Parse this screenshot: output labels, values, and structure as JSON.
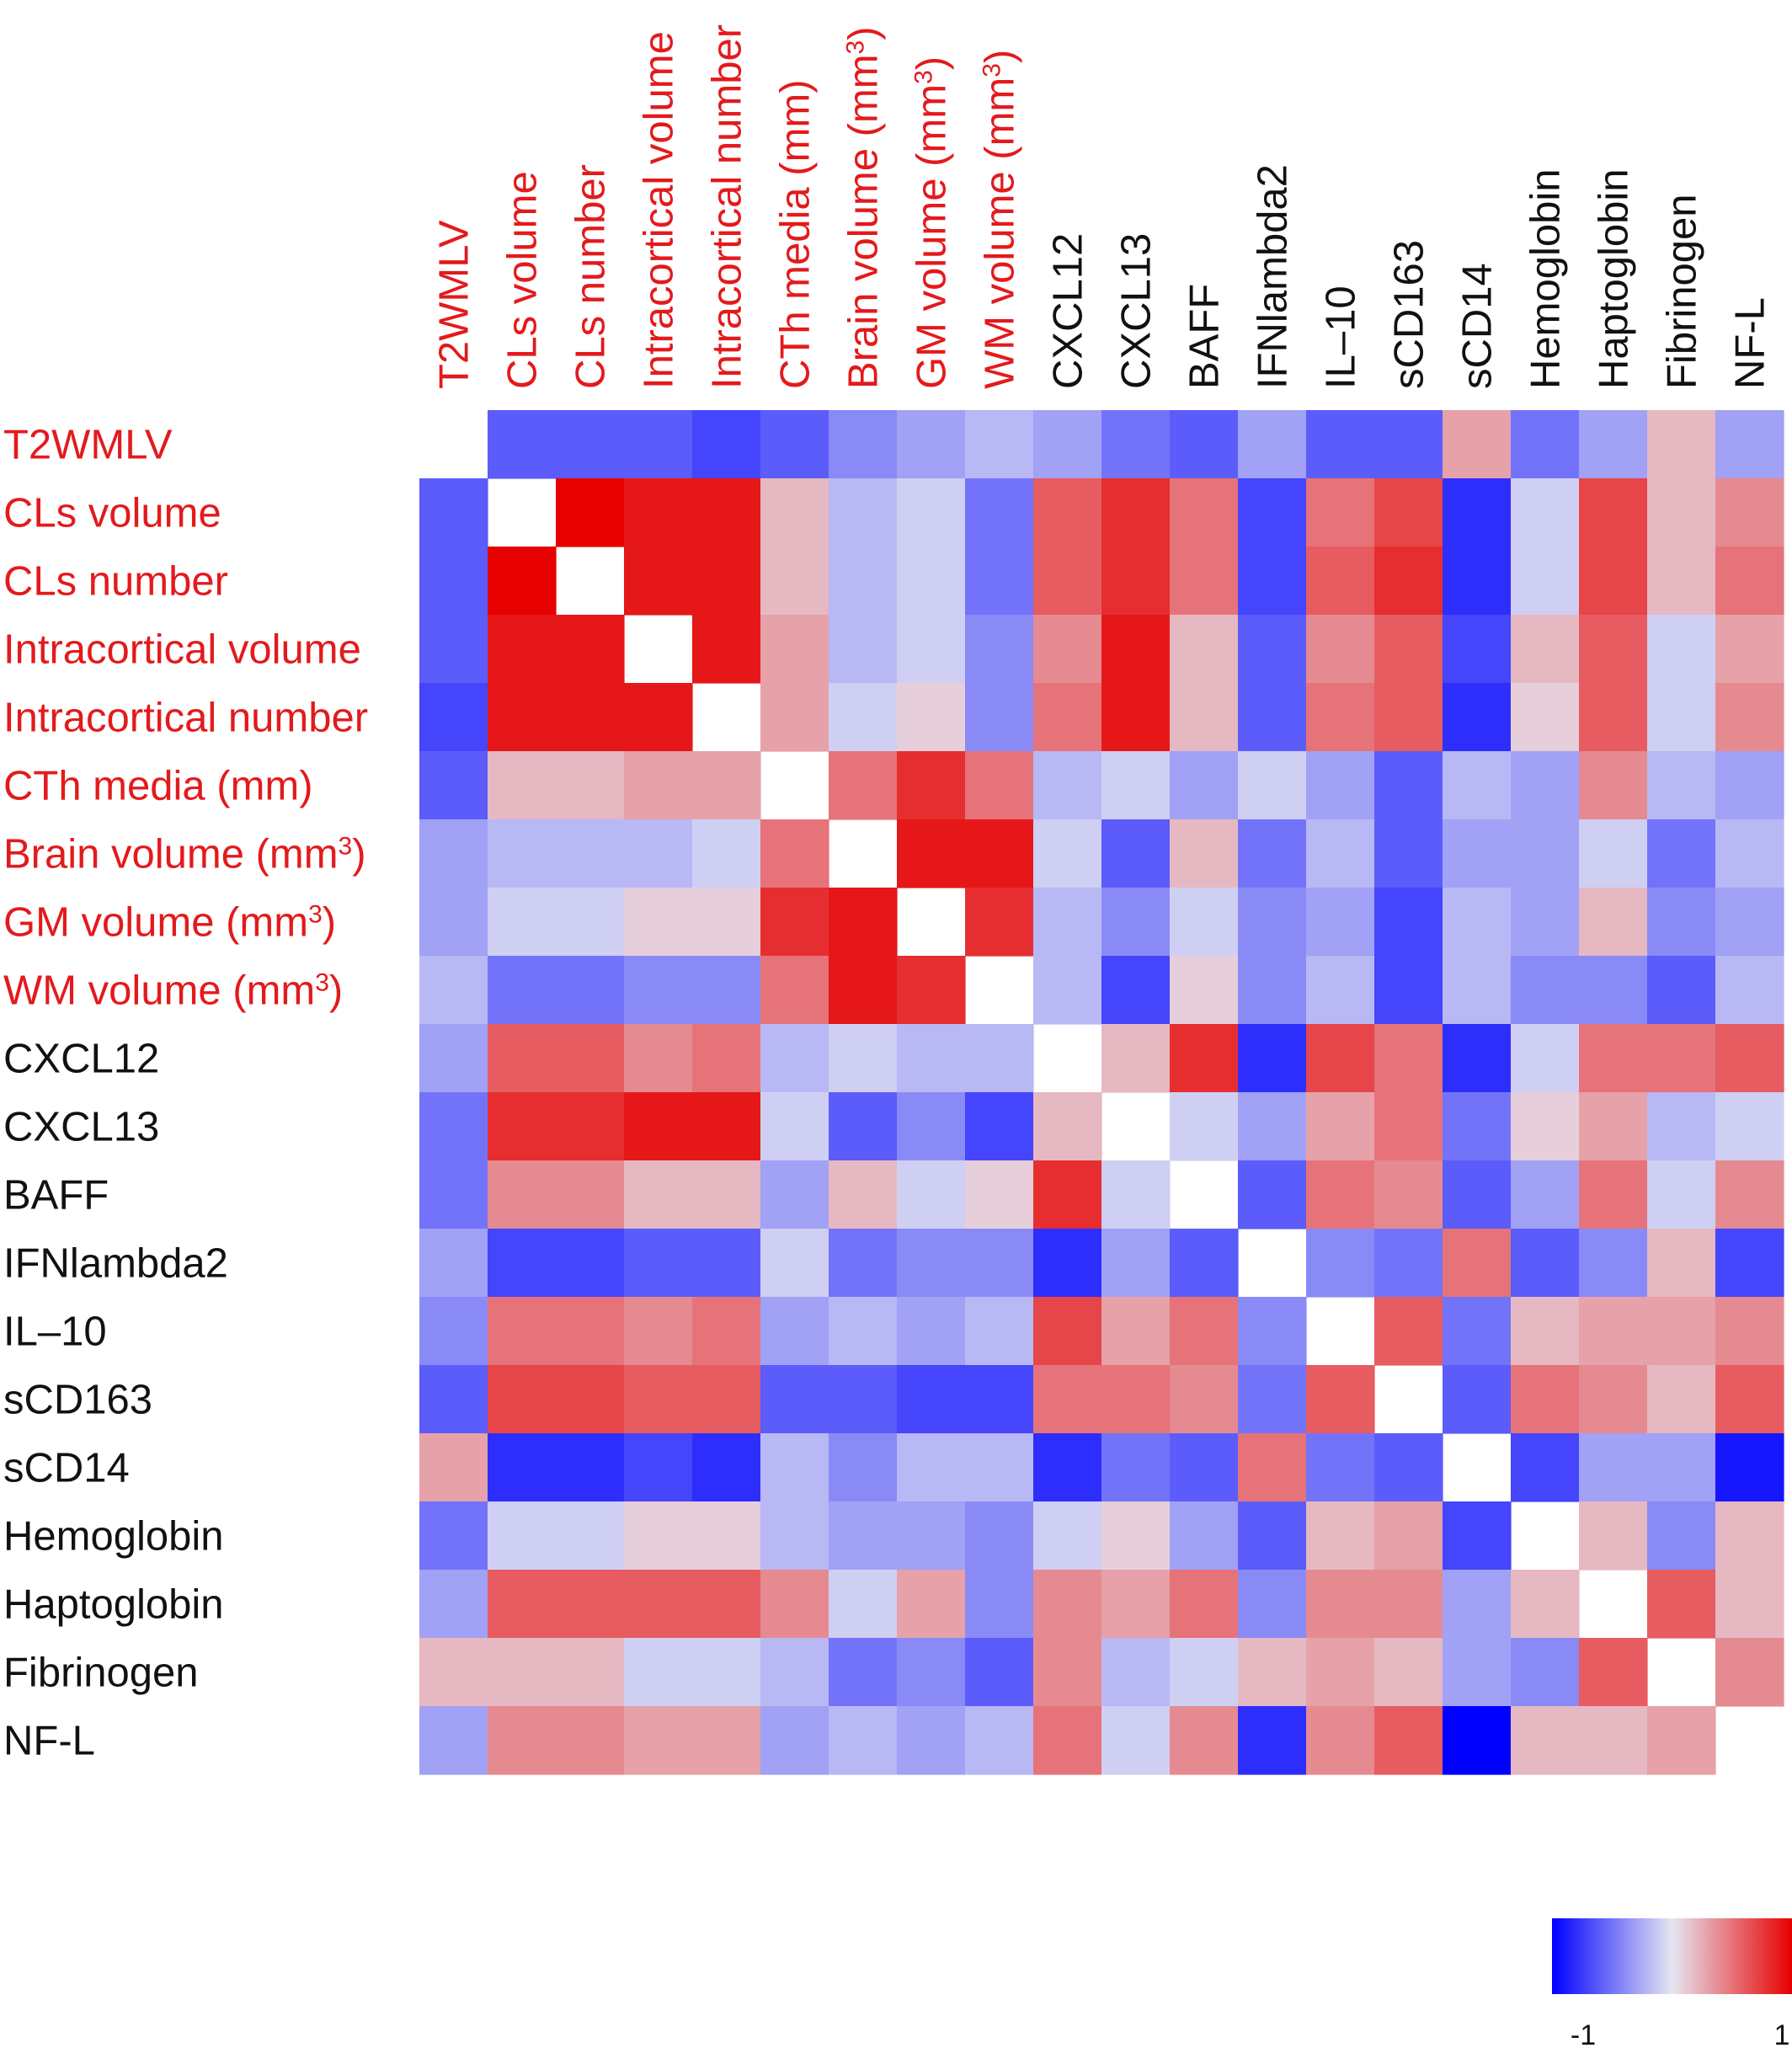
{
  "chart_data": {
    "type": "heatmap",
    "title": "",
    "variables": [
      "T2WMLV",
      "CLs volume",
      "CLs number",
      "Intracortical volume",
      "Intracortical number",
      "CTh media (mm)",
      "Brain volume (mm3)",
      "GM volume (mm3)",
      "WM volume (mm3)",
      "CXCL12",
      "CXCL13",
      "BAFF",
      "IFNlambda2",
      "IL–10",
      "sCD163",
      "sCD14",
      "Hemoglobin",
      "Haptoglobin",
      "Fibrinogen",
      "NF-L"
    ],
    "label_display": [
      {
        "text": "T2WMLV",
        "sup": ""
      },
      {
        "text": "CLs volume",
        "sup": ""
      },
      {
        "text": "CLs number",
        "sup": ""
      },
      {
        "text": "Intracortical volume",
        "sup": ""
      },
      {
        "text": "Intracortical number",
        "sup": ""
      },
      {
        "text": "CTh media (mm)",
        "sup": ""
      },
      {
        "text": "Brain volume (mm",
        "sup": "3",
        "suffix": ")"
      },
      {
        "text": "GM volume (mm",
        "sup": "3",
        "suffix": ")"
      },
      {
        "text": "WM volume (mm",
        "sup": "3",
        "suffix": ")"
      },
      {
        "text": "CXCL12",
        "sup": ""
      },
      {
        "text": "CXCL13",
        "sup": ""
      },
      {
        "text": "BAFF",
        "sup": ""
      },
      {
        "text": "IFNlambda2",
        "sup": ""
      },
      {
        "text": "IL–10",
        "sup": ""
      },
      {
        "text": "sCD163",
        "sup": ""
      },
      {
        "text": "sCD14",
        "sup": ""
      },
      {
        "text": "Hemoglobin",
        "sup": ""
      },
      {
        "text": "Haptoglobin",
        "sup": ""
      },
      {
        "text": "Fibrinogen",
        "sup": ""
      },
      {
        "text": "NF-L",
        "sup": ""
      }
    ],
    "label_colors": [
      "red",
      "red",
      "red",
      "red",
      "red",
      "red",
      "red",
      "red",
      "red",
      "black",
      "black",
      "black",
      "black",
      "black",
      "black",
      "black",
      "black",
      "black",
      "black",
      "black"
    ],
    "matrix": [
      [
        null,
        -0.6,
        -0.6,
        -0.6,
        -0.7,
        -0.6,
        -0.4,
        -0.3,
        -0.2,
        -0.3,
        -0.5,
        -0.6,
        -0.3,
        -0.6,
        -0.6,
        0.3,
        -0.5,
        -0.3,
        0.2,
        -0.3
      ],
      [
        -0.6,
        null,
        1.0,
        0.9,
        0.9,
        0.2,
        -0.2,
        -0.1,
        -0.5,
        0.6,
        0.8,
        0.5,
        -0.7,
        0.5,
        0.7,
        -0.8,
        -0.1,
        0.7,
        0.2,
        0.4
      ],
      [
        -0.6,
        1.0,
        null,
        0.9,
        0.9,
        0.2,
        -0.2,
        -0.1,
        -0.5,
        0.6,
        0.8,
        0.5,
        -0.7,
        0.6,
        0.8,
        -0.8,
        -0.1,
        0.7,
        0.2,
        0.5
      ],
      [
        -0.6,
        0.9,
        0.9,
        null,
        0.9,
        0.3,
        -0.2,
        -0.1,
        -0.4,
        0.4,
        0.9,
        0.2,
        -0.6,
        0.4,
        0.6,
        -0.7,
        0.2,
        0.6,
        -0.1,
        0.3
      ],
      [
        -0.7,
        0.9,
        0.9,
        0.9,
        null,
        0.3,
        -0.1,
        0.1,
        -0.4,
        0.5,
        0.9,
        0.2,
        -0.6,
        0.5,
        0.6,
        -0.8,
        0.1,
        0.6,
        -0.1,
        0.4
      ],
      [
        -0.6,
        0.2,
        0.2,
        0.3,
        0.3,
        null,
        0.5,
        0.8,
        0.5,
        -0.2,
        -0.1,
        -0.3,
        -0.1,
        -0.3,
        -0.6,
        -0.2,
        -0.3,
        0.4,
        -0.2,
        -0.3
      ],
      [
        -0.3,
        -0.2,
        -0.2,
        -0.2,
        -0.1,
        0.5,
        null,
        0.9,
        0.9,
        -0.1,
        -0.6,
        0.2,
        -0.5,
        -0.2,
        -0.6,
        -0.3,
        -0.3,
        -0.1,
        -0.5,
        -0.2
      ],
      [
        -0.3,
        -0.1,
        -0.1,
        0.1,
        0.1,
        0.8,
        0.9,
        null,
        0.8,
        -0.2,
        -0.4,
        -0.1,
        -0.4,
        -0.3,
        -0.7,
        -0.2,
        -0.3,
        0.2,
        -0.4,
        -0.3
      ],
      [
        -0.2,
        -0.5,
        -0.5,
        -0.4,
        -0.4,
        0.5,
        0.9,
        0.8,
        null,
        -0.2,
        -0.7,
        0.1,
        -0.4,
        -0.2,
        -0.7,
        -0.2,
        -0.4,
        -0.4,
        -0.6,
        -0.2
      ],
      [
        -0.3,
        0.6,
        0.6,
        0.4,
        0.5,
        -0.2,
        -0.1,
        -0.2,
        -0.2,
        null,
        0.2,
        0.8,
        -0.8,
        0.7,
        0.5,
        -0.8,
        -0.1,
        0.5,
        0.5,
        0.6
      ],
      [
        -0.5,
        0.8,
        0.8,
        0.9,
        0.9,
        -0.1,
        -0.6,
        -0.4,
        -0.7,
        0.2,
        null,
        -0.1,
        -0.3,
        0.3,
        0.5,
        -0.5,
        0.1,
        0.3,
        -0.2,
        -0.1
      ],
      [
        -0.5,
        0.4,
        0.4,
        0.2,
        0.2,
        -0.3,
        0.2,
        -0.1,
        0.1,
        0.8,
        -0.1,
        null,
        -0.6,
        0.5,
        0.4,
        -0.6,
        -0.3,
        0.5,
        -0.1,
        0.4
      ],
      [
        -0.3,
        -0.7,
        -0.7,
        -0.6,
        -0.6,
        -0.1,
        -0.5,
        -0.4,
        -0.4,
        -0.8,
        -0.3,
        -0.6,
        null,
        -0.4,
        -0.5,
        0.5,
        -0.6,
        -0.4,
        0.2,
        -0.7
      ],
      [
        -0.4,
        0.5,
        0.5,
        0.4,
        0.5,
        -0.3,
        -0.2,
        -0.3,
        -0.2,
        0.7,
        0.3,
        0.5,
        -0.4,
        null,
        0.6,
        -0.5,
        0.2,
        0.3,
        0.3,
        0.4
      ],
      [
        -0.6,
        0.7,
        0.7,
        0.6,
        0.6,
        -0.6,
        -0.6,
        -0.7,
        -0.7,
        0.5,
        0.5,
        0.4,
        -0.5,
        0.6,
        null,
        -0.6,
        0.5,
        0.4,
        0.2,
        0.6
      ],
      [
        0.3,
        -0.8,
        -0.8,
        -0.7,
        -0.8,
        -0.2,
        -0.4,
        -0.2,
        -0.2,
        -0.8,
        -0.5,
        -0.6,
        0.5,
        -0.5,
        -0.6,
        null,
        -0.7,
        -0.3,
        -0.3,
        -0.9
      ],
      [
        -0.5,
        -0.1,
        -0.1,
        0.1,
        0.1,
        -0.2,
        -0.3,
        -0.3,
        -0.4,
        -0.1,
        0.1,
        -0.3,
        -0.6,
        0.2,
        0.3,
        -0.7,
        null,
        0.2,
        -0.4,
        0.2
      ],
      [
        -0.3,
        0.6,
        0.6,
        0.6,
        0.6,
        0.4,
        -0.1,
        0.3,
        -0.4,
        0.4,
        0.3,
        0.5,
        -0.4,
        0.4,
        0.4,
        -0.3,
        0.2,
        null,
        0.6,
        0.2
      ],
      [
        0.2,
        0.2,
        0.2,
        -0.1,
        -0.1,
        -0.2,
        -0.5,
        -0.4,
        -0.6,
        0.4,
        -0.2,
        -0.1,
        0.2,
        0.3,
        0.2,
        -0.3,
        -0.4,
        0.6,
        null,
        0.4
      ],
      [
        -0.3,
        0.4,
        0.4,
        0.3,
        0.3,
        -0.3,
        -0.2,
        -0.3,
        -0.2,
        0.5,
        -0.1,
        0.4,
        -0.8,
        0.4,
        0.6,
        -1.0,
        0.2,
        0.2,
        0.3,
        null
      ]
    ],
    "color_scale": {
      "min": -1,
      "max": 1,
      "low": "#0000ff",
      "mid": "#e6e6f2",
      "high": "#e60000"
    },
    "legend": {
      "position": "bottom-right",
      "min_label": "-1",
      "max_label": "1"
    },
    "grid": false
  }
}
